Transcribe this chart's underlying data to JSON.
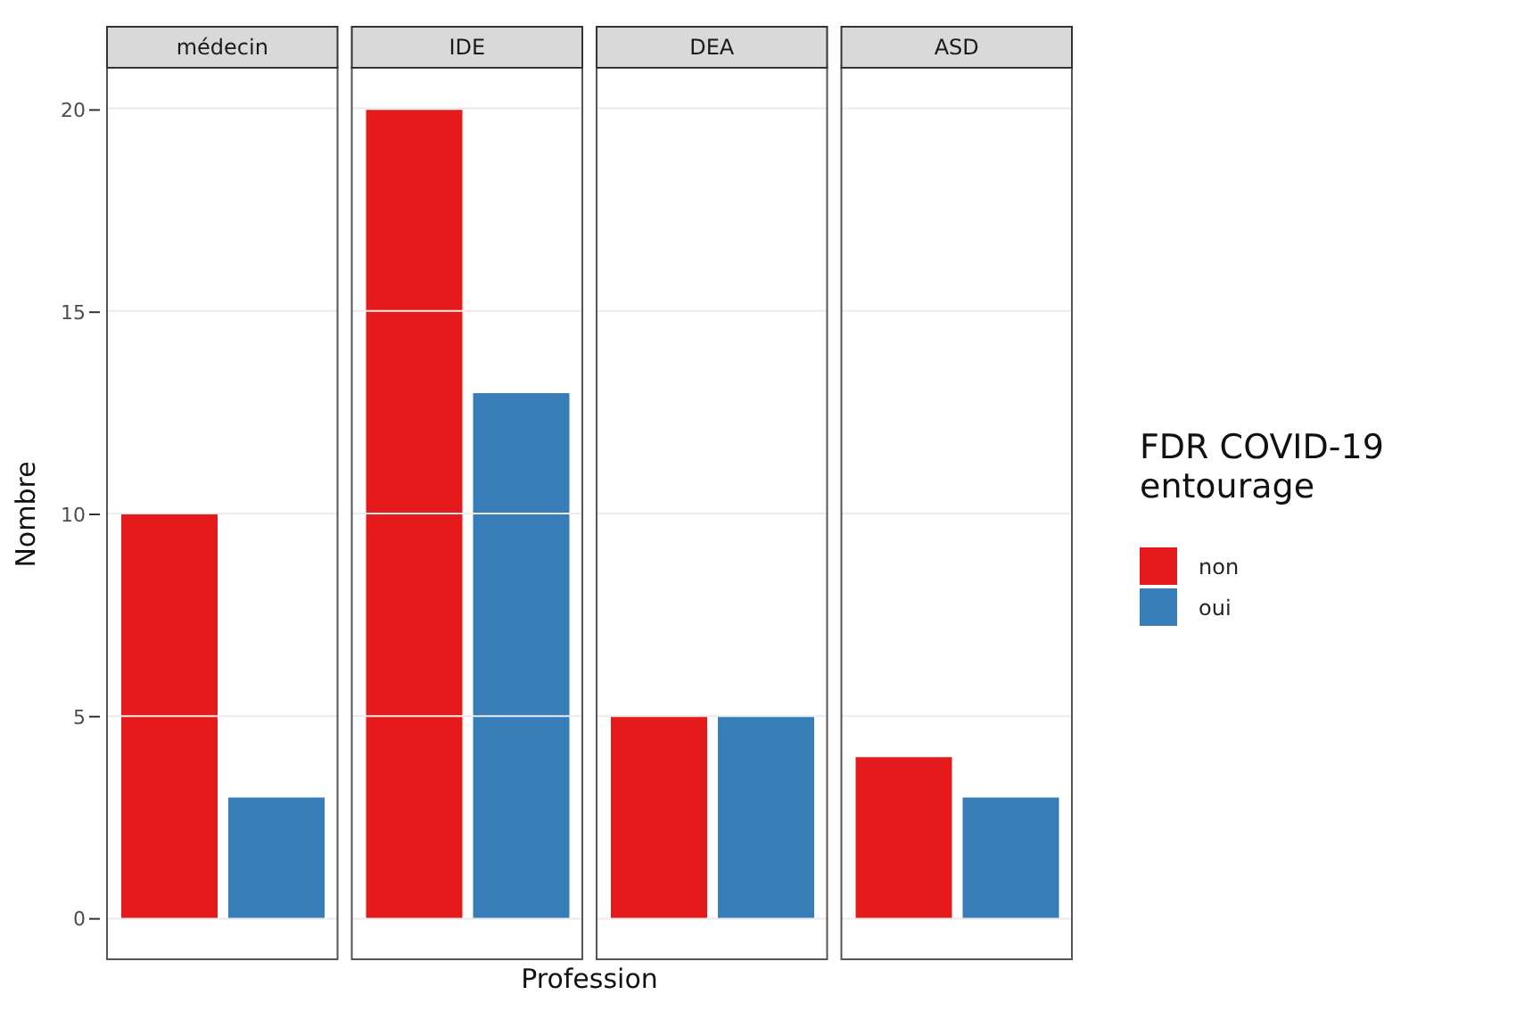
{
  "chart_data": {
    "type": "bar",
    "xlabel": "Profession",
    "ylabel": "Nombre",
    "legend_title": "FDR COVID-19 entourage",
    "categories": [
      "médecin",
      "IDE",
      "DEA",
      "ASD"
    ],
    "series": [
      {
        "name": "non",
        "color": "#e41a1c",
        "values": [
          10,
          20,
          5,
          4
        ]
      },
      {
        "name": "oui",
        "color": "#377eb8",
        "values": [
          3,
          13,
          5,
          3
        ]
      }
    ],
    "ylim": [
      -1,
      21
    ],
    "yticks": [
      0,
      5,
      10,
      15,
      20
    ],
    "grid": "y",
    "legend": "right"
  }
}
